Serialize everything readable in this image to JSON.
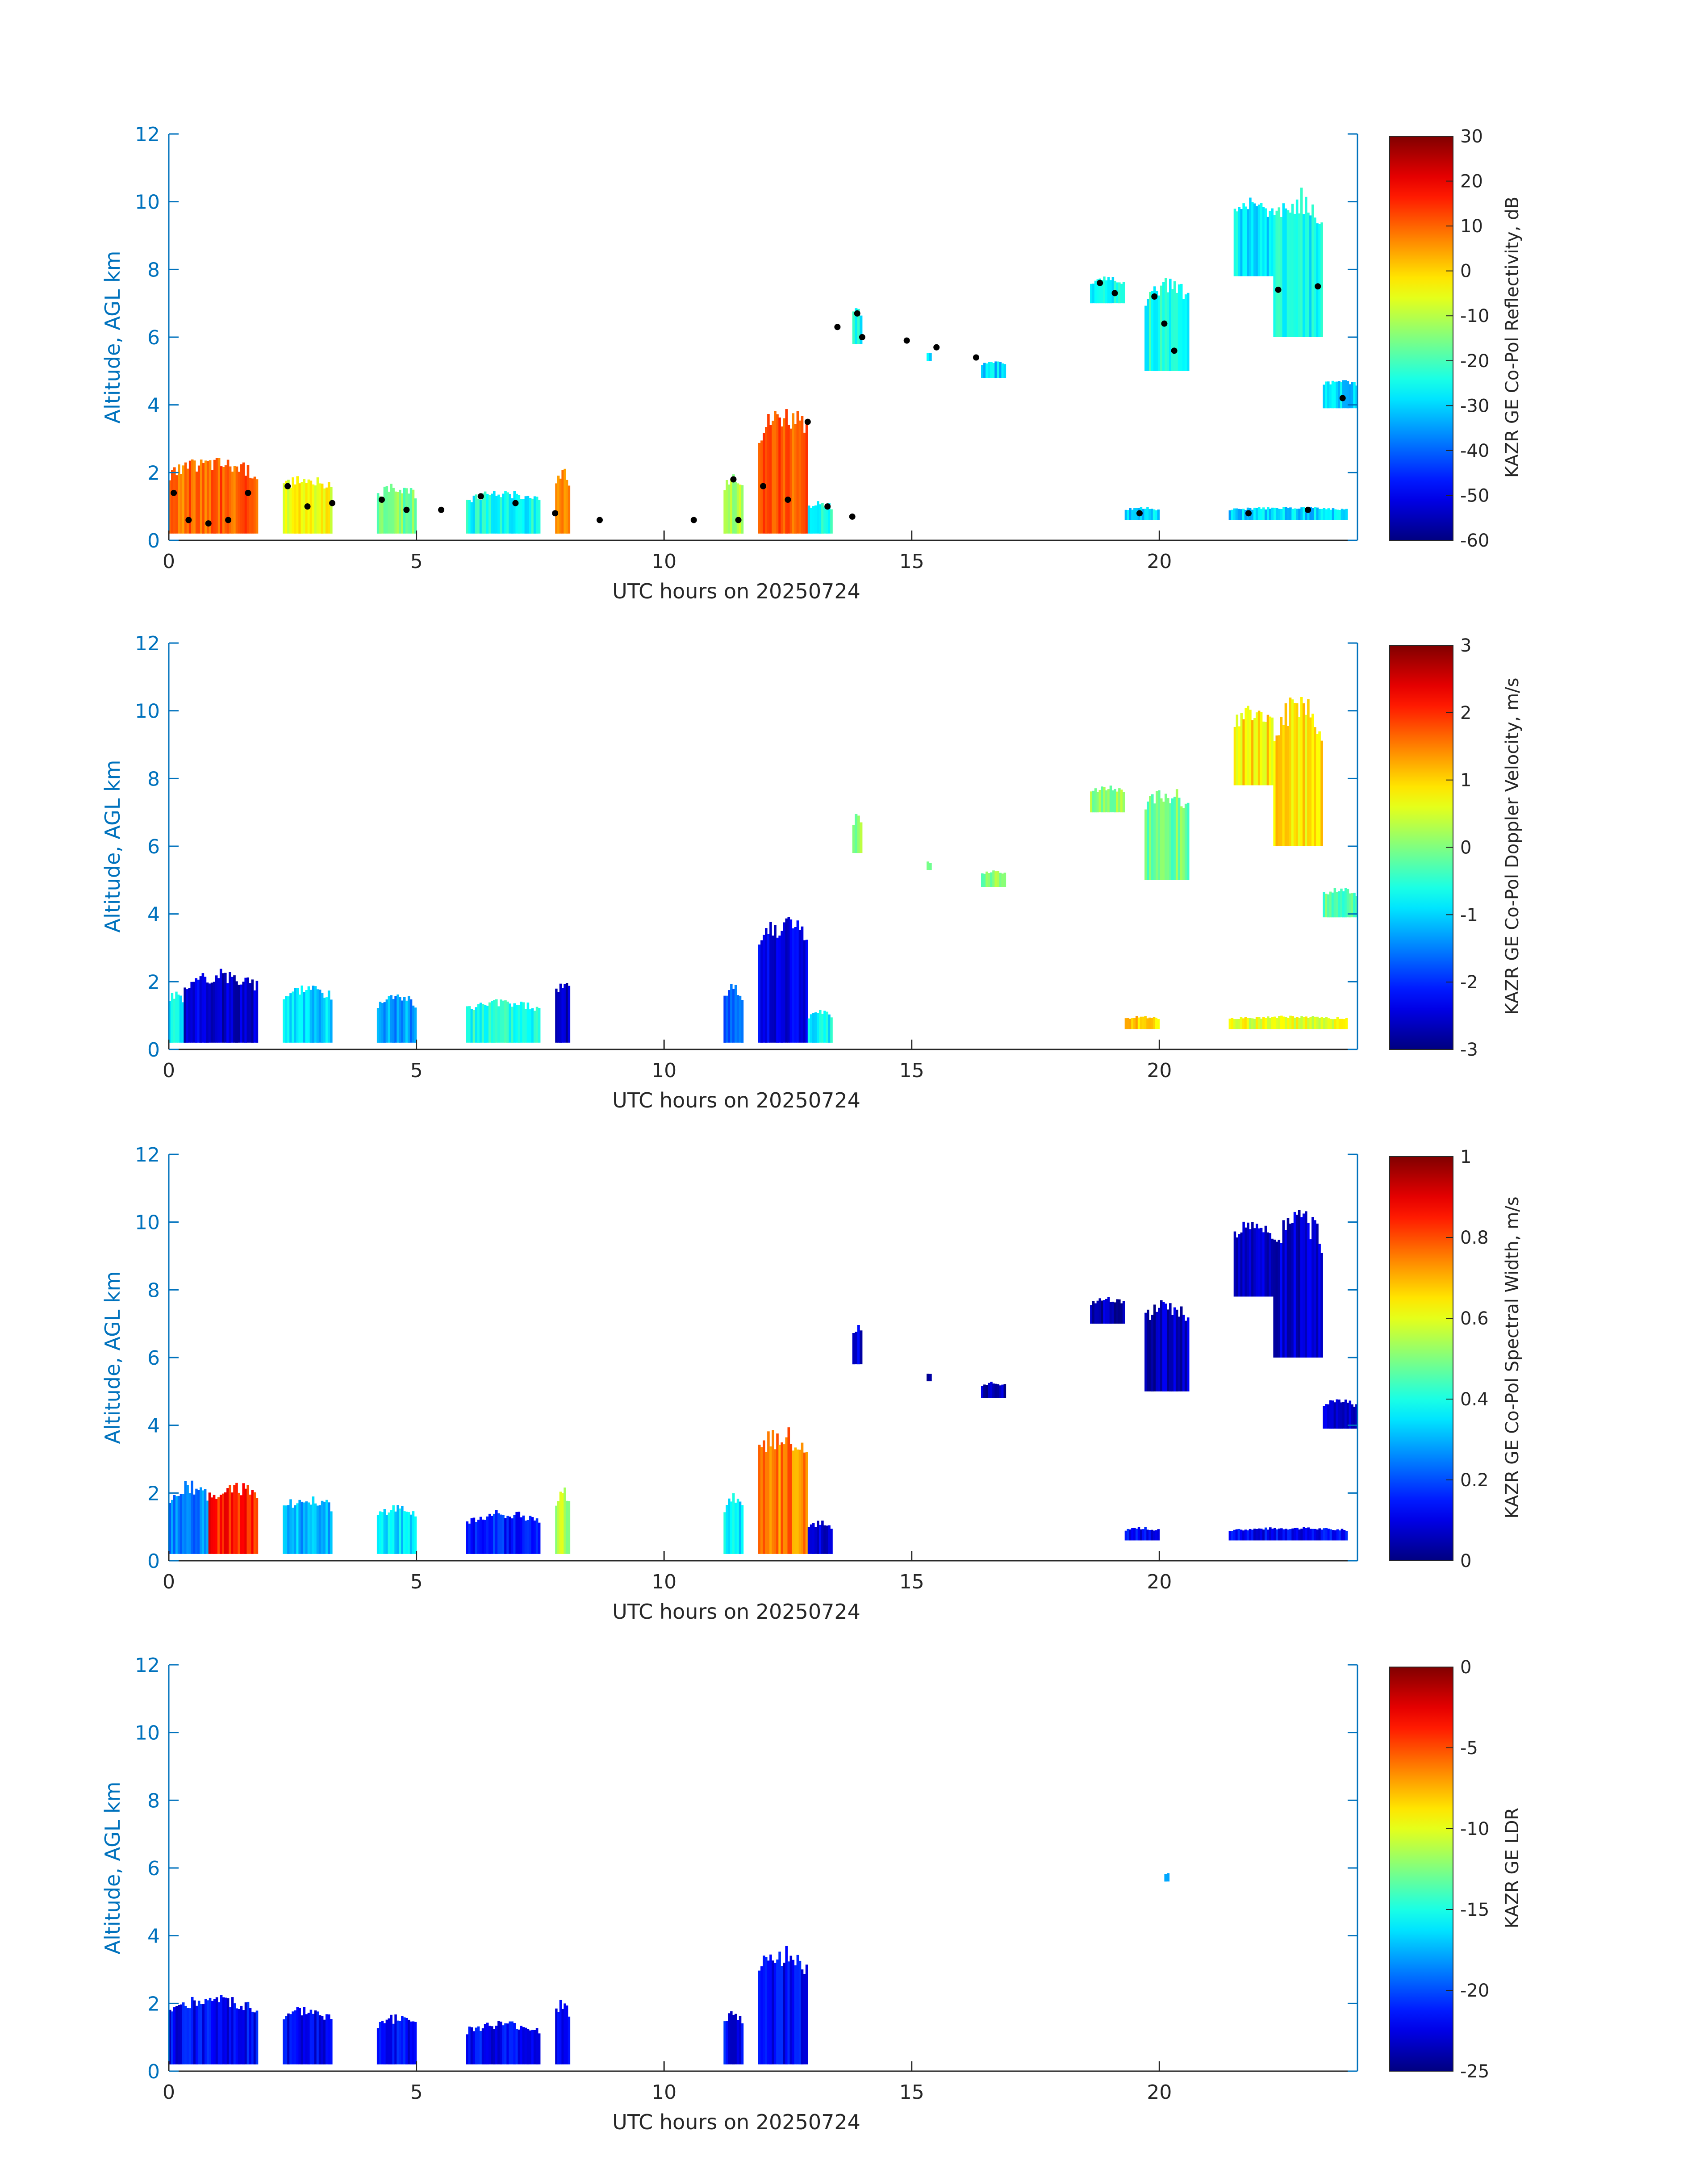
{
  "colors": {
    "axis_color": "#0072BD",
    "text_color": "#262626",
    "marker_color": "#000000"
  },
  "chart_data": [
    {
      "type": "heatmap",
      "xlabel": "UTC hours on 20250724",
      "ylabel": "Altitude, AGL km",
      "xlim": [
        0,
        24
      ],
      "ylim": [
        0,
        12
      ],
      "xticks": [
        "0",
        "5",
        "10",
        "15",
        "20"
      ],
      "yticks": [
        "0",
        "2",
        "4",
        "6",
        "8",
        "10",
        "12"
      ],
      "colorbar": {
        "label": "KAZR GE Co-Pol Reflectivity, dB",
        "colormap": "jet",
        "range": [
          -60,
          30
        ],
        "ticks": [
          "-60",
          "-50",
          "-40",
          "-30",
          "-20",
          "-10",
          "0",
          "10",
          "20",
          "30"
        ]
      },
      "regions": [
        {
          "x": [
            0.0,
            1.8
          ],
          "y": [
            0.2,
            2.5
          ],
          "value": 10
        },
        {
          "x": [
            2.3,
            3.3
          ],
          "y": [
            0.2,
            2.0
          ],
          "value": -5
        },
        {
          "x": [
            4.2,
            5.0
          ],
          "y": [
            0.2,
            1.7
          ],
          "value": -15
        },
        {
          "x": [
            6.0,
            7.5
          ],
          "y": [
            0.2,
            1.5
          ],
          "value": -25
        },
        {
          "x": [
            7.8,
            8.1
          ],
          "y": [
            0.2,
            2.2
          ],
          "value": 5
        },
        {
          "x": [
            11.2,
            11.6
          ],
          "y": [
            0.2,
            2.0
          ],
          "value": -10
        },
        {
          "x": [
            11.9,
            12.9
          ],
          "y": [
            0.2,
            4.1
          ],
          "value": 12
        },
        {
          "x": [
            12.9,
            13.4
          ],
          "y": [
            0.2,
            1.2
          ],
          "value": -25
        },
        {
          "x": [
            13.8,
            14.0
          ],
          "y": [
            5.8,
            7.0
          ],
          "value": -25
        },
        {
          "x": [
            15.3,
            15.4
          ],
          "y": [
            5.3,
            5.6
          ],
          "value": -28
        },
        {
          "x": [
            16.4,
            16.9
          ],
          "y": [
            4.8,
            5.3
          ],
          "value": -30
        },
        {
          "x": [
            18.6,
            19.3
          ],
          "y": [
            7.0,
            7.8
          ],
          "value": -25
        },
        {
          "x": [
            19.7,
            20.6
          ],
          "y": [
            5.0,
            7.8
          ],
          "value": -24
        },
        {
          "x": [
            21.5,
            22.3
          ],
          "y": [
            7.8,
            10.2
          ],
          "value": -28
        },
        {
          "x": [
            22.3,
            23.3
          ],
          "y": [
            6.0,
            10.5
          ],
          "value": -26
        },
        {
          "x": [
            23.3,
            24.0
          ],
          "y": [
            3.9,
            4.8
          ],
          "value": -30
        },
        {
          "x": [
            19.3,
            20.0
          ],
          "y": [
            0.6,
            1.0
          ],
          "value": -30
        },
        {
          "x": [
            21.4,
            23.8
          ],
          "y": [
            0.6,
            1.0
          ],
          "value": -30
        }
      ],
      "markers": [
        {
          "x": 0.1,
          "y": 1.4
        },
        {
          "x": 0.4,
          "y": 0.6
        },
        {
          "x": 0.8,
          "y": 0.5
        },
        {
          "x": 1.2,
          "y": 0.6
        },
        {
          "x": 1.6,
          "y": 1.4
        },
        {
          "x": 2.4,
          "y": 1.6
        },
        {
          "x": 2.8,
          "y": 1.0
        },
        {
          "x": 3.3,
          "y": 1.1
        },
        {
          "x": 4.3,
          "y": 1.2
        },
        {
          "x": 4.8,
          "y": 0.9
        },
        {
          "x": 5.5,
          "y": 0.9
        },
        {
          "x": 6.3,
          "y": 1.3
        },
        {
          "x": 7.0,
          "y": 1.1
        },
        {
          "x": 7.8,
          "y": 0.8
        },
        {
          "x": 8.7,
          "y": 0.6
        },
        {
          "x": 10.6,
          "y": 0.6
        },
        {
          "x": 11.4,
          "y": 1.8
        },
        {
          "x": 11.5,
          "y": 0.6
        },
        {
          "x": 12.0,
          "y": 1.6
        },
        {
          "x": 12.5,
          "y": 1.2
        },
        {
          "x": 12.9,
          "y": 3.5
        },
        {
          "x": 13.3,
          "y": 1.0
        },
        {
          "x": 13.8,
          "y": 0.7
        },
        {
          "x": 13.5,
          "y": 6.3
        },
        {
          "x": 13.9,
          "y": 6.7
        },
        {
          "x": 14.0,
          "y": 6.0
        },
        {
          "x": 14.9,
          "y": 5.9
        },
        {
          "x": 15.5,
          "y": 5.7
        },
        {
          "x": 16.3,
          "y": 5.4
        },
        {
          "x": 18.8,
          "y": 7.6
        },
        {
          "x": 19.1,
          "y": 7.3
        },
        {
          "x": 19.9,
          "y": 7.2
        },
        {
          "x": 20.1,
          "y": 6.4
        },
        {
          "x": 20.3,
          "y": 5.6
        },
        {
          "x": 19.6,
          "y": 0.8
        },
        {
          "x": 21.8,
          "y": 0.8
        },
        {
          "x": 22.4,
          "y": 7.4
        },
        {
          "x": 23.2,
          "y": 7.5
        },
        {
          "x": 23.0,
          "y": 0.9
        },
        {
          "x": 23.7,
          "y": 4.2
        }
      ]
    },
    {
      "type": "heatmap",
      "xlabel": "UTC hours on 20250724",
      "ylabel": "Altitude, AGL km",
      "xlim": [
        0,
        24
      ],
      "ylim": [
        0,
        12
      ],
      "xticks": [
        "0",
        "5",
        "10",
        "15",
        "20"
      ],
      "yticks": [
        "0",
        "2",
        "4",
        "6",
        "8",
        "10",
        "12"
      ],
      "colorbar": {
        "label": "KAZR GE Co-Pol Doppler Velocity, m/s",
        "colormap": "jet",
        "range": [
          -3,
          3
        ],
        "ticks": [
          "-3",
          "-2",
          "-1",
          "0",
          "1",
          "2",
          "3"
        ]
      },
      "regions": [
        {
          "x": [
            0.0,
            0.3
          ],
          "y": [
            0.2,
            1.8
          ],
          "value": -0.8
        },
        {
          "x": [
            0.3,
            1.8
          ],
          "y": [
            0.2,
            2.4
          ],
          "value": -2.5
        },
        {
          "x": [
            2.3,
            3.3
          ],
          "y": [
            0.2,
            2.0
          ],
          "value": -1.0
        },
        {
          "x": [
            4.2,
            5.0
          ],
          "y": [
            0.2,
            1.7
          ],
          "value": -1.3
        },
        {
          "x": [
            6.0,
            7.5
          ],
          "y": [
            0.2,
            1.5
          ],
          "value": -0.6
        },
        {
          "x": [
            7.8,
            8.1
          ],
          "y": [
            0.2,
            2.2
          ],
          "value": -2.6
        },
        {
          "x": [
            11.2,
            11.6
          ],
          "y": [
            0.2,
            2.0
          ],
          "value": -1.6
        },
        {
          "x": [
            11.9,
            12.9
          ],
          "y": [
            0.2,
            4.1
          ],
          "value": -2.4
        },
        {
          "x": [
            12.9,
            13.4
          ],
          "y": [
            0.2,
            1.2
          ],
          "value": -0.8
        },
        {
          "x": [
            13.8,
            14.0
          ],
          "y": [
            5.8,
            7.0
          ],
          "value": 0.0
        },
        {
          "x": [
            15.3,
            15.4
          ],
          "y": [
            5.3,
            5.6
          ],
          "value": 0.1
        },
        {
          "x": [
            16.4,
            16.9
          ],
          "y": [
            4.8,
            5.3
          ],
          "value": 0.0
        },
        {
          "x": [
            18.6,
            19.3
          ],
          "y": [
            7.0,
            7.8
          ],
          "value": 0.1
        },
        {
          "x": [
            19.7,
            20.6
          ],
          "y": [
            5.0,
            7.8
          ],
          "value": -0.1
        },
        {
          "x": [
            21.5,
            22.3
          ],
          "y": [
            7.8,
            10.2
          ],
          "value": 0.9
        },
        {
          "x": [
            22.3,
            23.3
          ],
          "y": [
            6.0,
            10.5
          ],
          "value": 0.9
        },
        {
          "x": [
            23.3,
            24.0
          ],
          "y": [
            3.9,
            4.8
          ],
          "value": -0.2
        },
        {
          "x": [
            19.3,
            20.0
          ],
          "y": [
            0.6,
            1.0
          ],
          "value": 1.0
        },
        {
          "x": [
            21.4,
            23.8
          ],
          "y": [
            0.6,
            1.0
          ],
          "value": 0.6
        }
      ]
    },
    {
      "type": "heatmap",
      "xlabel": "UTC hours on 20250724",
      "ylabel": "Altitude, AGL km",
      "xlim": [
        0,
        24
      ],
      "ylim": [
        0,
        12
      ],
      "xticks": [
        "0",
        "5",
        "10",
        "15",
        "20"
      ],
      "yticks": [
        "0",
        "2",
        "4",
        "6",
        "8",
        "10",
        "12"
      ],
      "colorbar": {
        "label": "KAZR GE Co-Pol Spectral Width, m/s",
        "colormap": "jet",
        "range": [
          0,
          1
        ],
        "ticks": [
          "0",
          "0.2",
          "0.4",
          "0.6",
          "0.8",
          "1"
        ]
      },
      "regions": [
        {
          "x": [
            0.0,
            0.8
          ],
          "y": [
            0.2,
            2.4
          ],
          "value": 0.25
        },
        {
          "x": [
            0.8,
            1.8
          ],
          "y": [
            0.2,
            2.4
          ],
          "value": 0.85
        },
        {
          "x": [
            2.3,
            3.3
          ],
          "y": [
            0.2,
            2.0
          ],
          "value": 0.3
        },
        {
          "x": [
            4.2,
            5.0
          ],
          "y": [
            0.2,
            1.7
          ],
          "value": 0.35
        },
        {
          "x": [
            6.0,
            7.5
          ],
          "y": [
            0.2,
            1.5
          ],
          "value": 0.15
        },
        {
          "x": [
            7.8,
            8.1
          ],
          "y": [
            0.2,
            2.2
          ],
          "value": 0.55
        },
        {
          "x": [
            11.2,
            11.6
          ],
          "y": [
            0.2,
            2.0
          ],
          "value": 0.35
        },
        {
          "x": [
            11.9,
            12.9
          ],
          "y": [
            0.2,
            4.1
          ],
          "value": 0.75
        },
        {
          "x": [
            12.9,
            13.4
          ],
          "y": [
            0.2,
            1.2
          ],
          "value": 0.1
        },
        {
          "x": [
            13.8,
            14.0
          ],
          "y": [
            5.8,
            7.0
          ],
          "value": 0.08
        },
        {
          "x": [
            15.3,
            15.4
          ],
          "y": [
            5.3,
            5.6
          ],
          "value": 0.06
        },
        {
          "x": [
            16.4,
            16.9
          ],
          "y": [
            4.8,
            5.3
          ],
          "value": 0.05
        },
        {
          "x": [
            18.6,
            19.3
          ],
          "y": [
            7.0,
            7.8
          ],
          "value": 0.05
        },
        {
          "x": [
            19.7,
            20.6
          ],
          "y": [
            5.0,
            7.8
          ],
          "value": 0.06
        },
        {
          "x": [
            21.5,
            22.3
          ],
          "y": [
            7.8,
            10.2
          ],
          "value": 0.08
        },
        {
          "x": [
            22.3,
            23.3
          ],
          "y": [
            6.0,
            10.5
          ],
          "value": 0.08
        },
        {
          "x": [
            23.3,
            24.0
          ],
          "y": [
            3.9,
            4.8
          ],
          "value": 0.06
        },
        {
          "x": [
            19.3,
            20.0
          ],
          "y": [
            0.6,
            1.0
          ],
          "value": 0.12
        },
        {
          "x": [
            21.4,
            23.8
          ],
          "y": [
            0.6,
            1.0
          ],
          "value": 0.12
        }
      ]
    },
    {
      "type": "heatmap",
      "xlabel": "UTC hours on 20250724",
      "ylabel": "Altitude, AGL km",
      "xlim": [
        0,
        24
      ],
      "ylim": [
        0,
        12
      ],
      "xticks": [
        "0",
        "5",
        "10",
        "15",
        "20"
      ],
      "yticks": [
        "0",
        "2",
        "4",
        "6",
        "8",
        "10",
        "12"
      ],
      "colorbar": {
        "label": "KAZR GE LDR",
        "colormap": "jet",
        "range": [
          -25,
          0
        ],
        "ticks": [
          "-25",
          "-20",
          "-15",
          "-10",
          "-5",
          "0"
        ]
      },
      "regions": [
        {
          "x": [
            0.0,
            1.8
          ],
          "y": [
            0.2,
            2.3
          ],
          "value": -22
        },
        {
          "x": [
            2.3,
            3.3
          ],
          "y": [
            0.2,
            2.0
          ],
          "value": -22
        },
        {
          "x": [
            4.2,
            5.0
          ],
          "y": [
            0.2,
            1.7
          ],
          "value": -22
        },
        {
          "x": [
            6.0,
            7.5
          ],
          "y": [
            0.2,
            1.5
          ],
          "value": -22
        },
        {
          "x": [
            7.8,
            8.1
          ],
          "y": [
            0.2,
            2.2
          ],
          "value": -22
        },
        {
          "x": [
            11.2,
            11.6
          ],
          "y": [
            0.2,
            1.8
          ],
          "value": -22
        },
        {
          "x": [
            11.9,
            12.9
          ],
          "y": [
            0.2,
            3.8
          ],
          "value": -22
        },
        {
          "x": [
            20.1,
            20.2
          ],
          "y": [
            5.6,
            5.9
          ],
          "value": -18
        }
      ]
    }
  ]
}
